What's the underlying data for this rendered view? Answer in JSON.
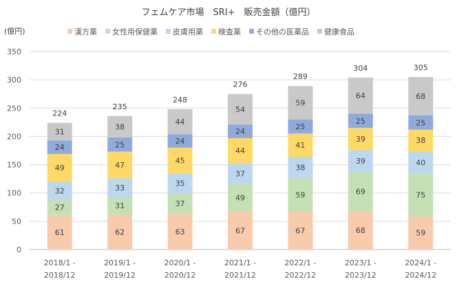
{
  "chart_data": {
    "type": "bar",
    "stacked": true,
    "title": "フェムケア市場　SRI+　販売金額（億円）",
    "ylabel": "(億円)",
    "xlabel": "",
    "ylim": [
      0,
      350
    ],
    "yticks": [
      0,
      50,
      100,
      150,
      200,
      250,
      300,
      350
    ],
    "grid": true,
    "legend_position": "top",
    "categories": [
      [
        "2018/1 -",
        "2018/12"
      ],
      [
        "2019/1 -",
        "2019/12"
      ],
      [
        "2020/1 -",
        "2020/12"
      ],
      [
        "2021/1 -",
        "2021/12"
      ],
      [
        "2022/1 -",
        "2022/12"
      ],
      [
        "2023/1 -",
        "2023/12"
      ],
      [
        "2024/1 -",
        "2024/12"
      ]
    ],
    "series": [
      {
        "name": "漢方薬",
        "color": "#F8CBAD",
        "values": [
          61,
          62,
          63,
          67,
          67,
          68,
          59
        ]
      },
      {
        "name": "女性用保健薬",
        "color": "#C5E0B4",
        "values": [
          27,
          31,
          37,
          49,
          59,
          69,
          75
        ]
      },
      {
        "name": "皮膚用薬",
        "color": "#BDD7EE",
        "values": [
          32,
          33,
          35,
          37,
          38,
          39,
          40
        ]
      },
      {
        "name": "検査薬",
        "color": "#FFD966",
        "values": [
          49,
          47,
          45,
          44,
          41,
          39,
          38
        ]
      },
      {
        "name": "その他の医薬品",
        "color": "#8FAADC",
        "values": [
          24,
          25,
          24,
          24,
          25,
          25,
          25
        ]
      },
      {
        "name": "健康食品",
        "color": "#C9C9C9",
        "values": [
          31,
          38,
          44,
          54,
          59,
          64,
          68
        ]
      }
    ],
    "totals": [
      224,
      235,
      248,
      276,
      289,
      304,
      305
    ]
  }
}
